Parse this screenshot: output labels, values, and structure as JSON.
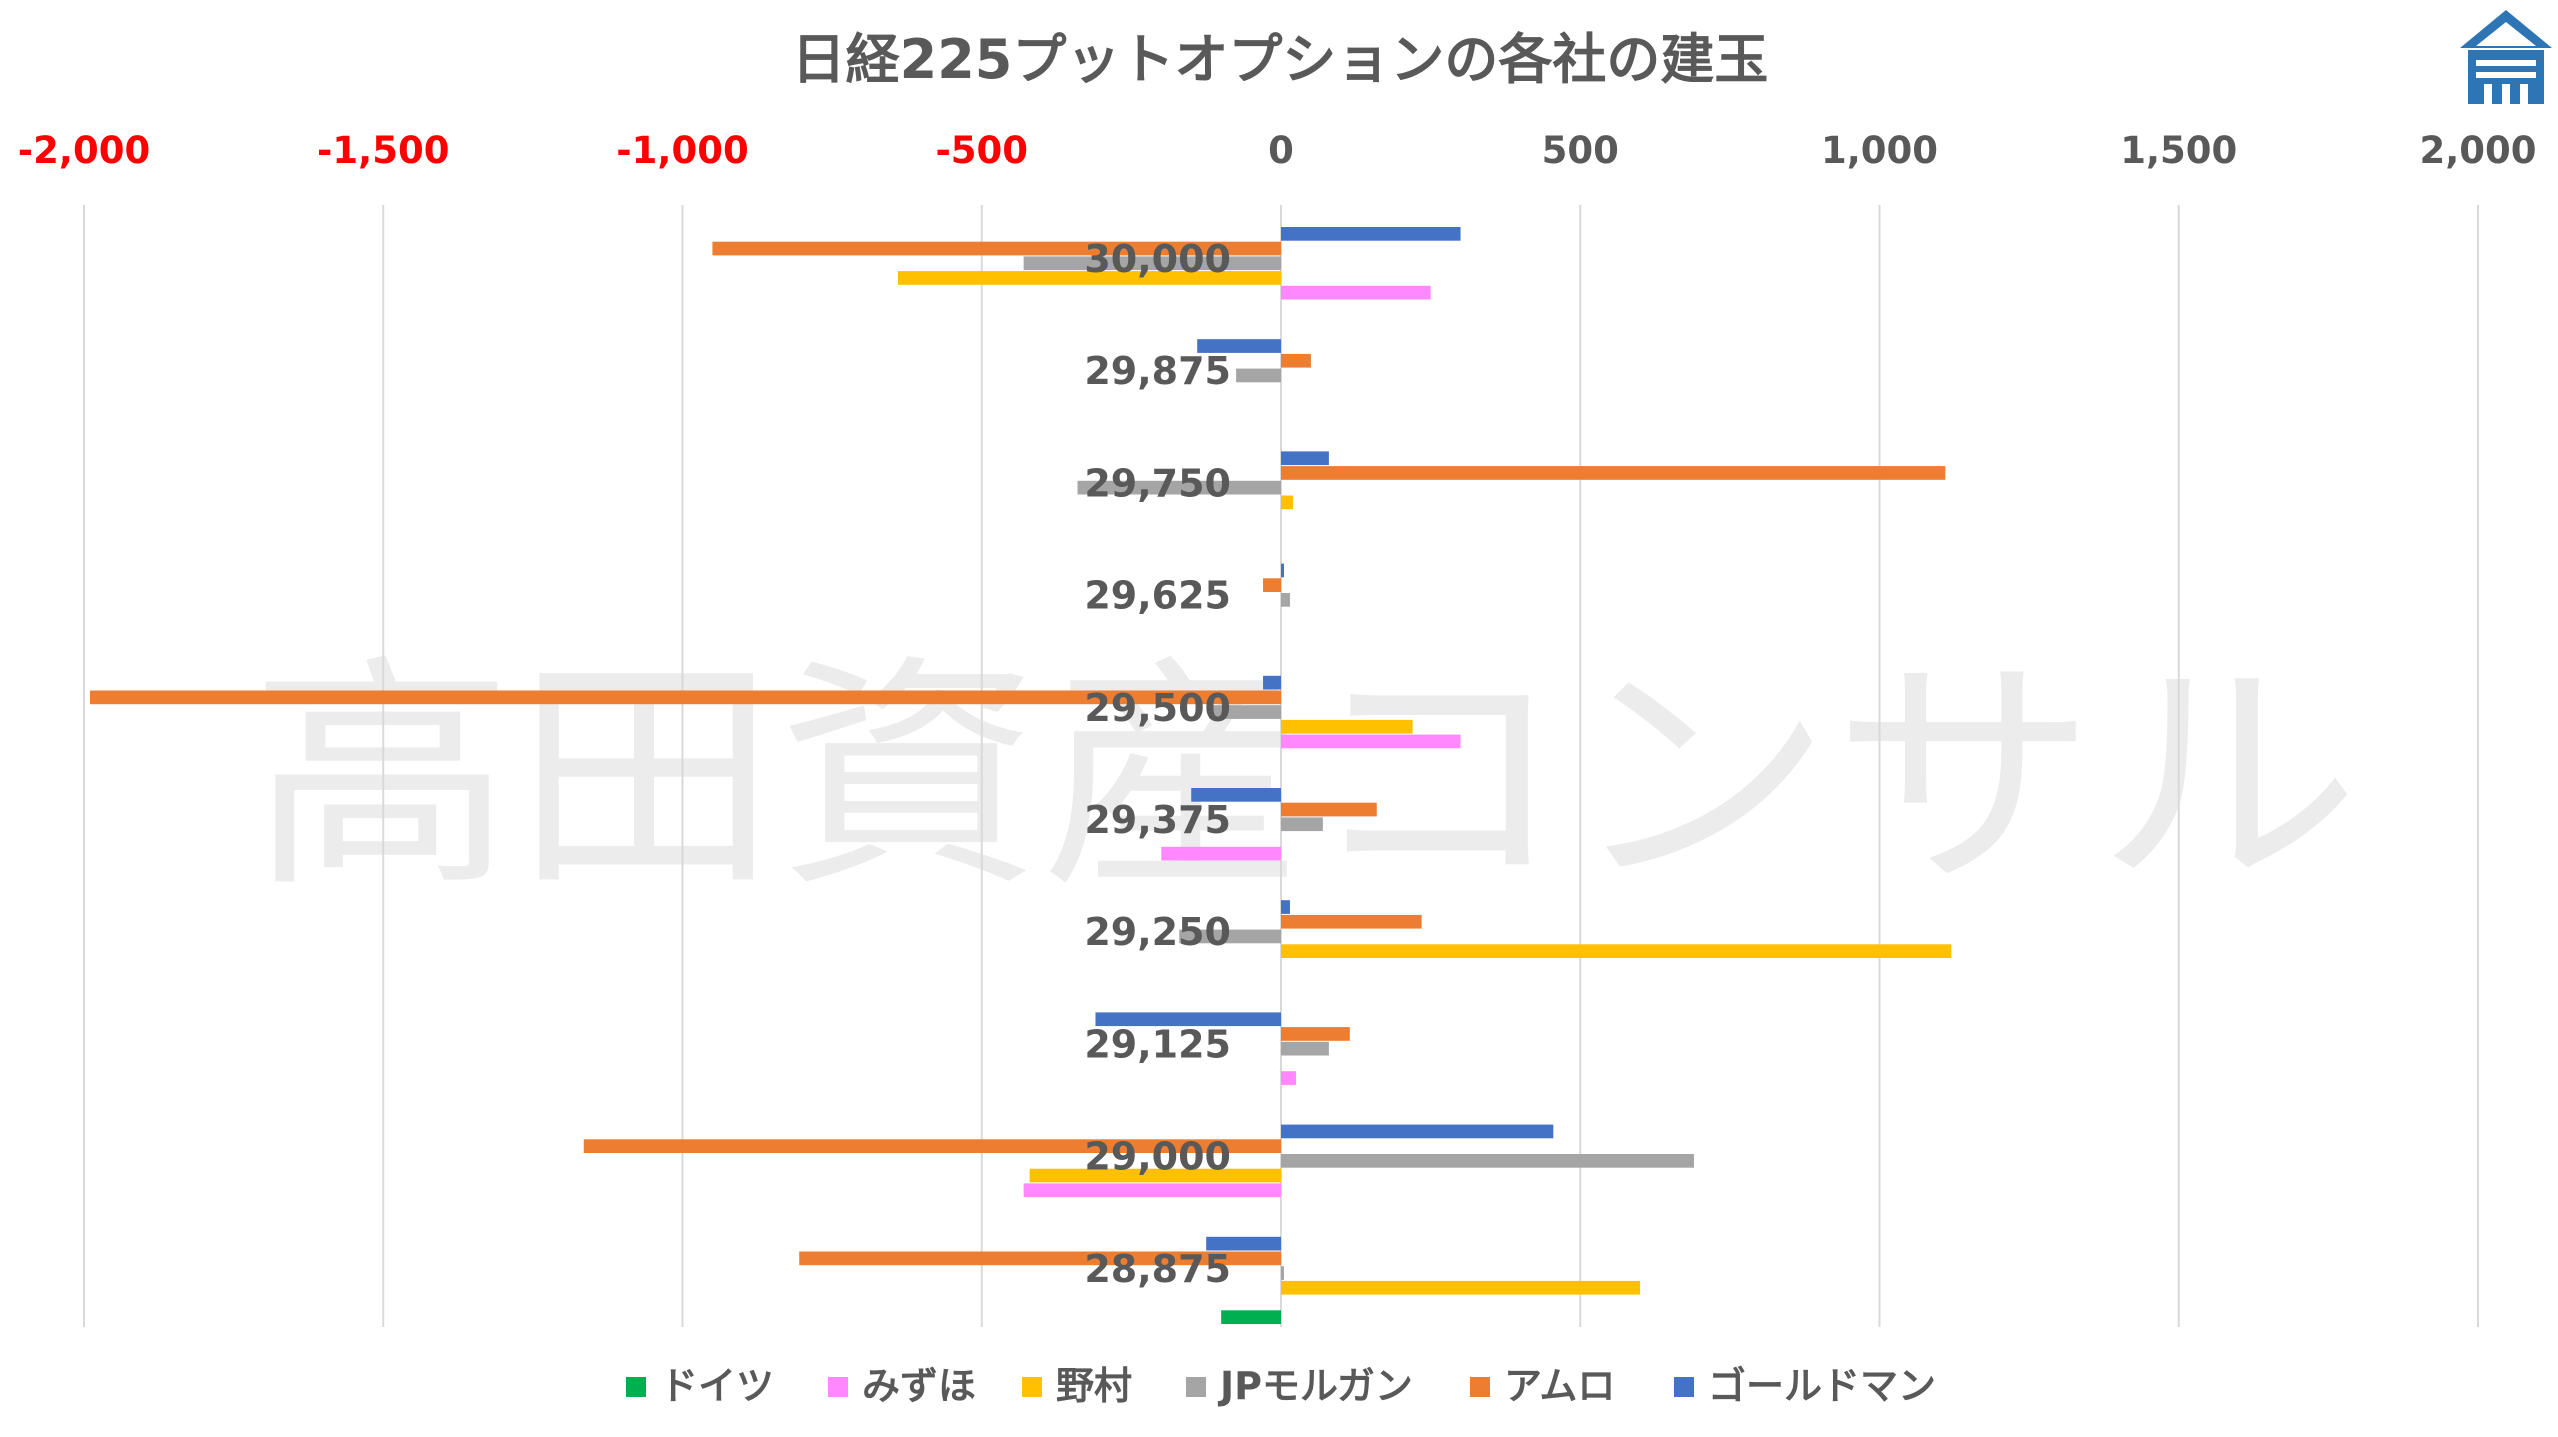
{
  "chart_data": {
    "type": "bar",
    "orientation": "horizontal",
    "title": "日経225プットオプションの各社の建玉",
    "watermark": "高田資産コンサル",
    "logo": "house-logo",
    "xlim": [
      -2000,
      2000
    ],
    "xticks": [
      -2000,
      -1500,
      -1000,
      -500,
      0,
      500,
      1000,
      1500,
      2000
    ],
    "xtick_labels": [
      "-2,000",
      "-1,500",
      "-1,000",
      "-500",
      "0",
      "500",
      "1,000",
      "1,500",
      "2,000"
    ],
    "negative_tick_color": "#ff0000",
    "positive_tick_color": "#595959",
    "grid": true,
    "legend_position": "bottom",
    "categories": [
      "30,000",
      "29,875",
      "29,750",
      "29,625",
      "29,500",
      "29,375",
      "29,250",
      "29,125",
      "29,000",
      "28,875"
    ],
    "series": [
      {
        "name": "ドイツ",
        "color": "#00b050",
        "values": [
          0,
          0,
          0,
          0,
          0,
          0,
          0,
          0,
          0,
          -100
        ]
      },
      {
        "name": "みずほ",
        "color": "#ff88ff",
        "values": [
          250,
          0,
          0,
          0,
          300,
          -200,
          0,
          25,
          -430,
          0
        ]
      },
      {
        "name": "野村",
        "color": "#ffc000",
        "values": [
          -640,
          0,
          20,
          0,
          220,
          0,
          1120,
          0,
          -420,
          600
        ]
      },
      {
        "name": "JPモルガン",
        "color": "#a5a5a5",
        "values": [
          -430,
          -75,
          -340,
          15,
          -120,
          70,
          -170,
          80,
          690,
          5
        ]
      },
      {
        "name": "アムロ",
        "color": "#ed7d31",
        "values": [
          -950,
          50,
          1110,
          -30,
          -1990,
          160,
          235,
          115,
          -1165,
          -805
        ]
      },
      {
        "name": "ゴールドマン",
        "color": "#4472c4",
        "values": [
          300,
          -140,
          80,
          5,
          -30,
          -150,
          15,
          -310,
          455,
          -125
        ]
      }
    ]
  }
}
